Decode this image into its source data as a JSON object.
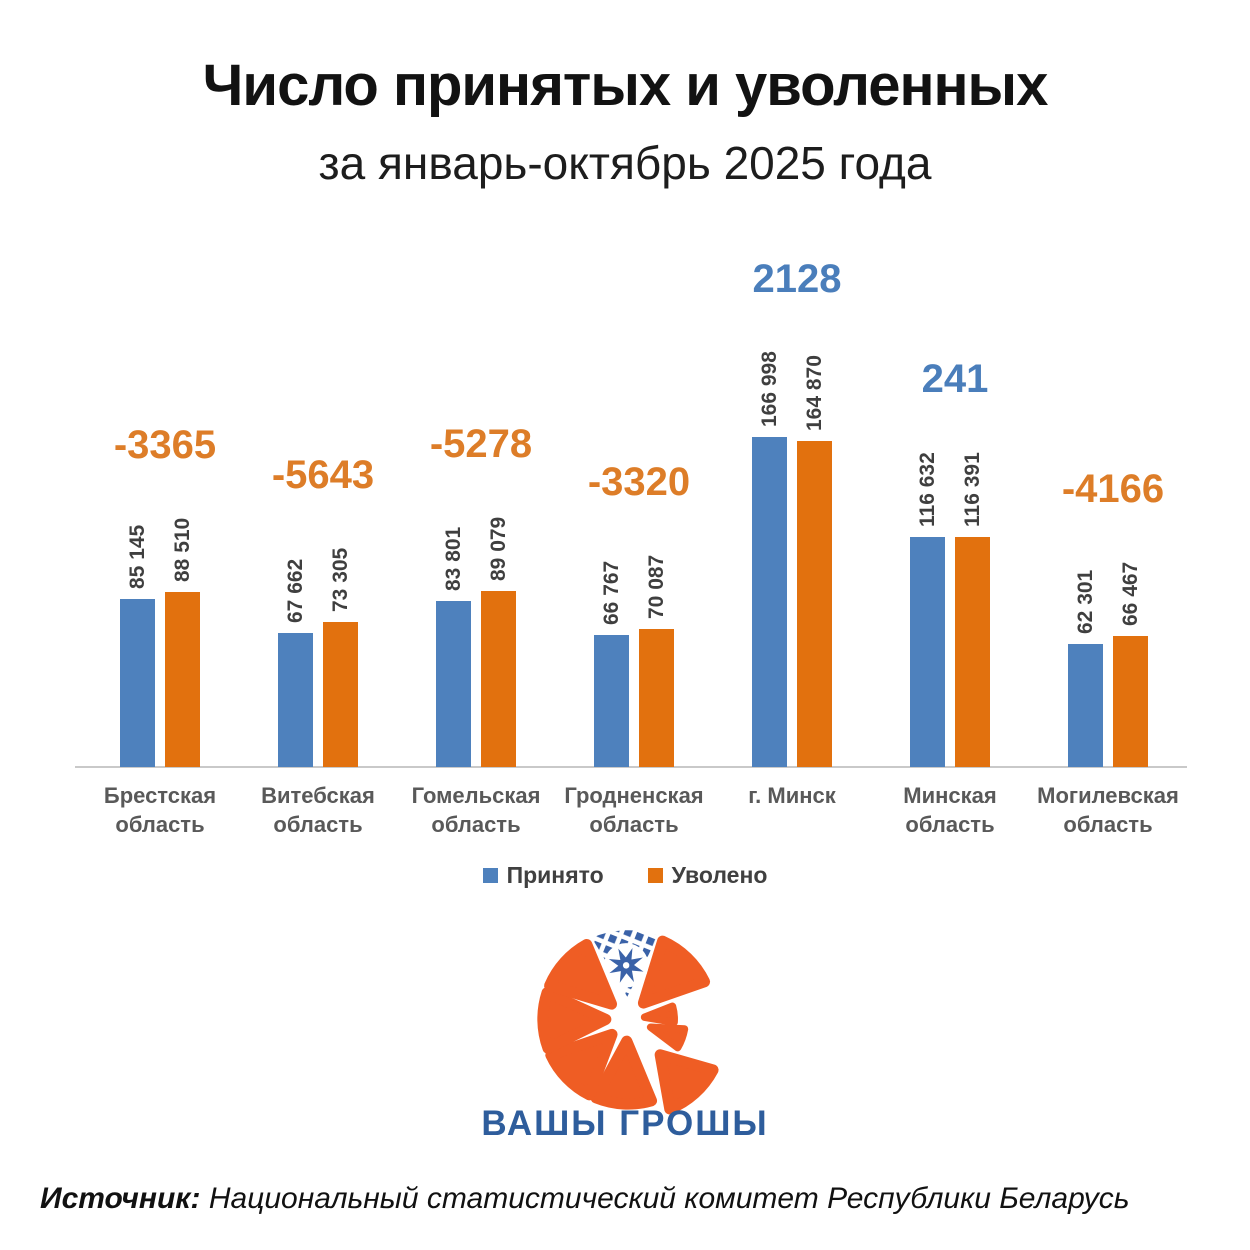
{
  "title": "Число принятых и уволенных",
  "subtitle": "за январь-октябрь 2025 года",
  "chart_data": {
    "type": "bar",
    "categories": [
      "Брестская область",
      "Витебская область",
      "Гомельская область",
      "Гродненская область",
      "г. Минск",
      "Минская область",
      "Могилевская область"
    ],
    "x_labels": [
      [
        "Брестская",
        "область"
      ],
      [
        "Витебская",
        "область"
      ],
      [
        "Гомельская",
        "область"
      ],
      [
        "Гродненская",
        "область"
      ],
      [
        "г. Минск"
      ],
      [
        "Минская",
        "область"
      ],
      [
        "Могилевская",
        "область"
      ]
    ],
    "series": [
      {
        "name": "Принято",
        "color": "#4e81bd",
        "values": [
          85145,
          67662,
          83801,
          66767,
          166998,
          116632,
          62301
        ]
      },
      {
        "name": "Уволено",
        "color": "#e2710e",
        "values": [
          88510,
          73305,
          89079,
          70087,
          164870,
          116391,
          66467
        ]
      }
    ],
    "diff_values": [
      -3365,
      -5643,
      -5278,
      -3320,
      2128,
      241,
      -4166
    ],
    "diff_positive_color": "#4a7ebb",
    "diff_negative_color": "#dd7d28",
    "value_label_color": "#3f3f3f",
    "tick_label_color": "#595959",
    "axis_line_color": "#c9c9c9",
    "ylim": [
      0,
      175000
    ],
    "grid": false,
    "legend_position": "bottom"
  },
  "legend": {
    "items": [
      {
        "label": "Принято",
        "color": "#4e81bd"
      },
      {
        "label": "Уволено",
        "color": "#e2710e"
      }
    ]
  },
  "logo": {
    "text": "ВАШЫ ГРОШЫ",
    "text_color": "#2e5d9c",
    "orange": "#ef5d24",
    "ornament_blue": "#3a62a8"
  },
  "source": {
    "label": "Источник:",
    "text": " Национальный статистический комитет Республики Беларусь"
  }
}
